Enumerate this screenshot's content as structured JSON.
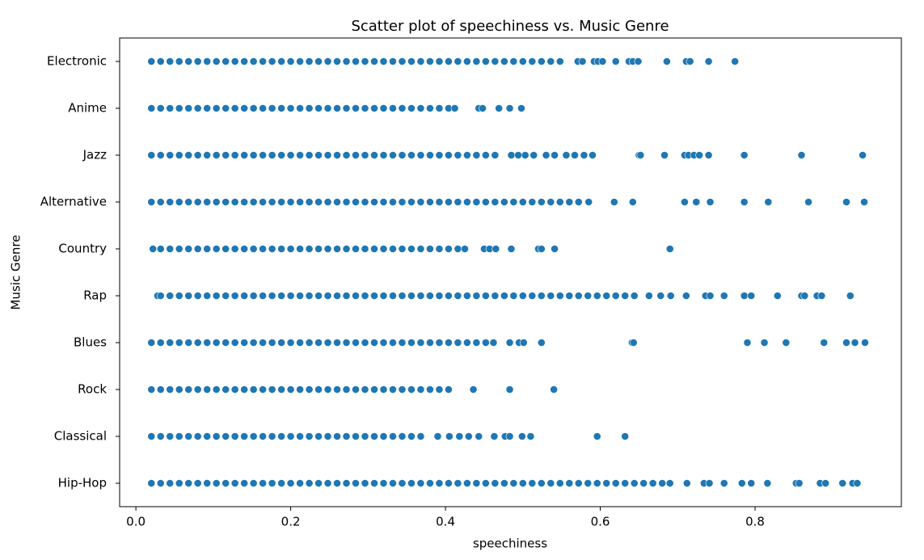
{
  "chart_data": {
    "type": "scatter",
    "title": "Scatter plot of speechiness vs. Music Genre",
    "x_label": "speechiness",
    "y_label": "Music Genre",
    "color": "#1f77b4",
    "categories": [
      "Electronic",
      "Anime",
      "Jazz",
      "Alternative",
      "Country",
      "Rap",
      "Blues",
      "Rock",
      "Classical",
      "Hip-Hop"
    ],
    "xlim": [
      -0.021,
      0.989
    ],
    "xticks": [
      {
        "value": 0,
        "label": "0.0"
      },
      0.2,
      0.4,
      0.6,
      0.8
    ],
    "values": [
      [
        0.02,
        0.032,
        0.044,
        0.056,
        0.068,
        0.08,
        0.092,
        0.104,
        0.116,
        0.128,
        0.14,
        0.152,
        0.164,
        0.176,
        0.188,
        0.2,
        0.212,
        0.224,
        0.236,
        0.248,
        0.26,
        0.272,
        0.284,
        0.296,
        0.308,
        0.32,
        0.332,
        0.344,
        0.356,
        0.368,
        0.38,
        0.392,
        0.404,
        0.416,
        0.428,
        0.44,
        0.452,
        0.464,
        0.476,
        0.488,
        0.5,
        0.512,
        0.524,
        0.536,
        0.548,
        0.571,
        0.577,
        0.592,
        0.597,
        0.603,
        0.62,
        0.637,
        0.642,
        0.649,
        0.686,
        0.711,
        0.716,
        0.74,
        0.774
      ],
      [
        0.02,
        0.032,
        0.044,
        0.056,
        0.068,
        0.08,
        0.092,
        0.104,
        0.116,
        0.128,
        0.14,
        0.152,
        0.164,
        0.176,
        0.188,
        0.2,
        0.212,
        0.224,
        0.236,
        0.248,
        0.26,
        0.272,
        0.284,
        0.296,
        0.308,
        0.32,
        0.332,
        0.344,
        0.356,
        0.368,
        0.38,
        0.392,
        0.404,
        0.412,
        0.443,
        0.448,
        0.469,
        0.483,
        0.498
      ],
      [
        0.02,
        0.032,
        0.044,
        0.056,
        0.068,
        0.08,
        0.092,
        0.104,
        0.116,
        0.128,
        0.14,
        0.152,
        0.164,
        0.176,
        0.188,
        0.2,
        0.212,
        0.224,
        0.236,
        0.248,
        0.26,
        0.272,
        0.284,
        0.296,
        0.308,
        0.32,
        0.332,
        0.344,
        0.356,
        0.368,
        0.38,
        0.392,
        0.404,
        0.416,
        0.428,
        0.44,
        0.452,
        0.464,
        0.485,
        0.494,
        0.503,
        0.514,
        0.53,
        0.541,
        0.556,
        0.567,
        0.579,
        0.59,
        0.65,
        0.652,
        0.683,
        0.709,
        0.714,
        0.721,
        0.728,
        0.74,
        0.786,
        0.86,
        0.939
      ],
      [
        0.02,
        0.032,
        0.044,
        0.056,
        0.068,
        0.08,
        0.092,
        0.104,
        0.116,
        0.128,
        0.14,
        0.152,
        0.164,
        0.176,
        0.188,
        0.2,
        0.212,
        0.224,
        0.236,
        0.248,
        0.26,
        0.272,
        0.284,
        0.296,
        0.308,
        0.32,
        0.332,
        0.344,
        0.356,
        0.368,
        0.38,
        0.392,
        0.404,
        0.416,
        0.428,
        0.44,
        0.452,
        0.464,
        0.476,
        0.488,
        0.5,
        0.512,
        0.524,
        0.536,
        0.548,
        0.56,
        0.572,
        0.585,
        0.618,
        0.642,
        0.709,
        0.724,
        0.742,
        0.786,
        0.817,
        0.869,
        0.918,
        0.941
      ],
      [
        0.022,
        0.032,
        0.044,
        0.056,
        0.068,
        0.08,
        0.092,
        0.104,
        0.116,
        0.128,
        0.14,
        0.152,
        0.164,
        0.176,
        0.188,
        0.2,
        0.212,
        0.224,
        0.236,
        0.248,
        0.26,
        0.272,
        0.284,
        0.296,
        0.308,
        0.32,
        0.332,
        0.344,
        0.356,
        0.368,
        0.38,
        0.392,
        0.404,
        0.416,
        0.425,
        0.45,
        0.457,
        0.465,
        0.485,
        0.52,
        0.524,
        0.541,
        0.69
      ],
      [
        0.028,
        0.032,
        0.044,
        0.056,
        0.068,
        0.08,
        0.092,
        0.104,
        0.116,
        0.128,
        0.14,
        0.152,
        0.164,
        0.176,
        0.188,
        0.2,
        0.212,
        0.224,
        0.236,
        0.248,
        0.26,
        0.272,
        0.284,
        0.296,
        0.308,
        0.32,
        0.332,
        0.344,
        0.356,
        0.368,
        0.38,
        0.392,
        0.404,
        0.416,
        0.428,
        0.44,
        0.452,
        0.464,
        0.476,
        0.488,
        0.5,
        0.512,
        0.524,
        0.536,
        0.548,
        0.56,
        0.572,
        0.584,
        0.596,
        0.608,
        0.62,
        0.632,
        0.644,
        0.663,
        0.678,
        0.691,
        0.711,
        0.736,
        0.742,
        0.76,
        0.786,
        0.795,
        0.829,
        0.86,
        0.864,
        0.88,
        0.886,
        0.923
      ],
      [
        0.02,
        0.032,
        0.044,
        0.056,
        0.068,
        0.08,
        0.092,
        0.104,
        0.116,
        0.128,
        0.14,
        0.152,
        0.164,
        0.176,
        0.188,
        0.2,
        0.212,
        0.224,
        0.236,
        0.248,
        0.26,
        0.272,
        0.284,
        0.296,
        0.308,
        0.32,
        0.332,
        0.344,
        0.356,
        0.368,
        0.38,
        0.392,
        0.404,
        0.416,
        0.428,
        0.44,
        0.452,
        0.462,
        0.483,
        0.495,
        0.501,
        0.524,
        0.641,
        0.643,
        0.79,
        0.812,
        0.84,
        0.889,
        0.918,
        0.929,
        0.942
      ],
      [
        0.02,
        0.032,
        0.044,
        0.056,
        0.068,
        0.08,
        0.092,
        0.104,
        0.116,
        0.128,
        0.14,
        0.152,
        0.164,
        0.176,
        0.188,
        0.2,
        0.212,
        0.224,
        0.236,
        0.248,
        0.26,
        0.272,
        0.284,
        0.296,
        0.308,
        0.32,
        0.332,
        0.344,
        0.356,
        0.368,
        0.38,
        0.392,
        0.404,
        0.436,
        0.483,
        0.54
      ],
      [
        0.02,
        0.032,
        0.044,
        0.056,
        0.068,
        0.08,
        0.092,
        0.104,
        0.116,
        0.128,
        0.14,
        0.152,
        0.164,
        0.176,
        0.188,
        0.2,
        0.212,
        0.224,
        0.236,
        0.248,
        0.26,
        0.272,
        0.284,
        0.296,
        0.308,
        0.32,
        0.332,
        0.344,
        0.356,
        0.368,
        0.39,
        0.405,
        0.418,
        0.43,
        0.443,
        0.463,
        0.477,
        0.483,
        0.499,
        0.51,
        0.596,
        0.632
      ],
      [
        0.02,
        0.032,
        0.044,
        0.056,
        0.068,
        0.08,
        0.092,
        0.104,
        0.116,
        0.128,
        0.14,
        0.152,
        0.164,
        0.176,
        0.188,
        0.2,
        0.212,
        0.224,
        0.236,
        0.248,
        0.26,
        0.272,
        0.284,
        0.296,
        0.308,
        0.32,
        0.332,
        0.344,
        0.356,
        0.368,
        0.38,
        0.392,
        0.404,
        0.416,
        0.428,
        0.44,
        0.452,
        0.464,
        0.476,
        0.488,
        0.5,
        0.512,
        0.524,
        0.536,
        0.548,
        0.56,
        0.572,
        0.584,
        0.596,
        0.608,
        0.62,
        0.632,
        0.644,
        0.656,
        0.668,
        0.68,
        0.69,
        0.712,
        0.734,
        0.741,
        0.76,
        0.783,
        0.795,
        0.816,
        0.853,
        0.857,
        0.884,
        0.891,
        0.913,
        0.926,
        0.932
      ]
    ]
  }
}
